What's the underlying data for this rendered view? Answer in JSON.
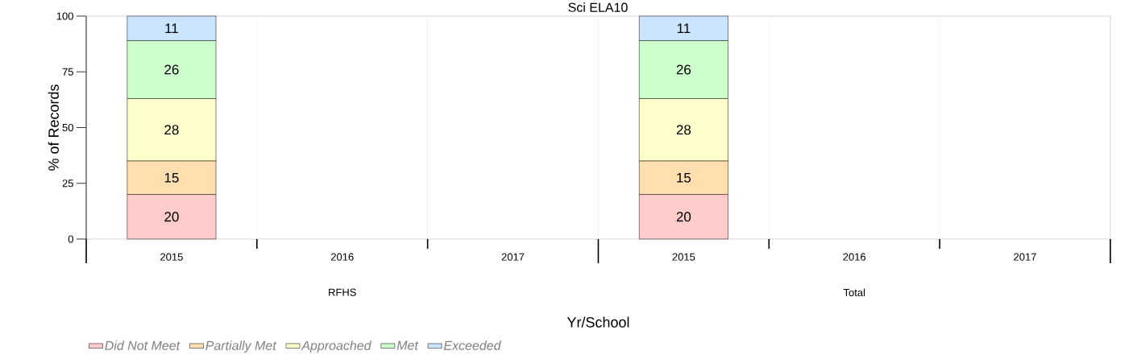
{
  "chart_data": {
    "type": "bar",
    "title": "Sci ELA10",
    "xlabel": "Yr/School",
    "ylabel": "% of Records",
    "categories": [
      "2015",
      "2016",
      "2017",
      "2015",
      "2016",
      "2017"
    ],
    "annotations": [
      "RFHS",
      "Total"
    ],
    "stacked": true,
    "series": [
      {
        "name": "Did Not Meet",
        "color": "#ffcccc",
        "values": [
          20,
          null,
          null,
          20,
          null,
          null
        ]
      },
      {
        "name": "Partially Met",
        "color": "#ffdfaf",
        "values": [
          15,
          null,
          null,
          15,
          null,
          null
        ]
      },
      {
        "name": "Approached",
        "color": "#ffffcc",
        "values": [
          28,
          null,
          null,
          28,
          null,
          null
        ]
      },
      {
        "name": "Met",
        "color": "#ccffcc",
        "values": [
          26,
          null,
          null,
          26,
          null,
          null
        ]
      },
      {
        "name": "Exceeded",
        "color": "#cce5ff",
        "values": [
          11,
          null,
          null,
          11,
          null,
          null
        ]
      }
    ],
    "ylim": [
      0,
      100
    ],
    "yticks": [
      0,
      25,
      50,
      75,
      100
    ],
    "grid": "x",
    "legend": "bottom left",
    "data_labels": true
  }
}
